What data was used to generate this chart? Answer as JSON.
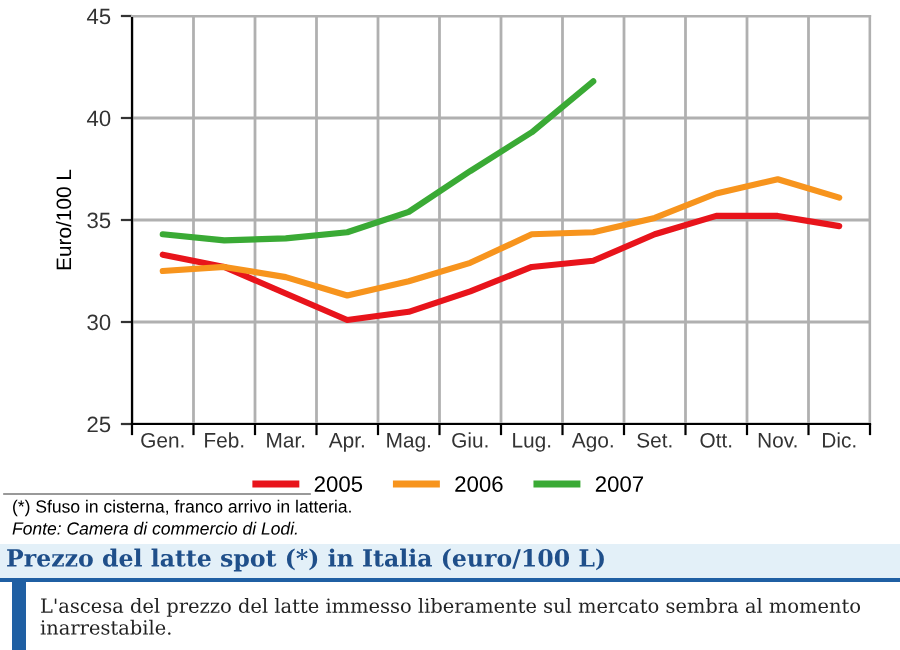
{
  "chart_data": {
    "type": "line",
    "title": "Prezzo del latte spot (*) in Italia (euro/100 L)",
    "subtitle": "L'ascesa del prezzo del latte immesso liberamente sul mercato sembra al momento inarrestabile.",
    "ylabel": "Euro/100 L",
    "annotations": [
      "(*) Sfuso in cisterna, franco arrivo in latteria.",
      "Fonte: Camera di commercio di Lodi."
    ],
    "categories": [
      "Gen.",
      "Feb.",
      "Mar.",
      "Apr.",
      "Mag.",
      "Giu.",
      "Lug.",
      "Ago.",
      "Set.",
      "Ott.",
      "Nov.",
      "Dic."
    ],
    "ylim": [
      25,
      45
    ],
    "yticks": [
      25,
      30,
      35,
      40,
      45
    ],
    "grid": true,
    "legend": "bottom",
    "line_style": "solid",
    "series": [
      {
        "name": "2005",
        "color": "#e8141b",
        "values": [
          33.3,
          32.7,
          31.4,
          30.1,
          30.5,
          31.5,
          32.7,
          33.0,
          34.3,
          35.2,
          35.2,
          34.7
        ]
      },
      {
        "name": "2006",
        "color": "#f7941d",
        "values": [
          32.5,
          32.7,
          32.2,
          31.3,
          32.0,
          32.9,
          34.3,
          34.4,
          35.1,
          36.3,
          37.0,
          36.1
        ]
      },
      {
        "name": "2007",
        "color": "#3aaa35",
        "values": [
          34.3,
          34.0,
          34.1,
          34.4,
          35.4,
          37.4,
          39.3,
          41.8,
          null,
          null,
          null,
          null
        ]
      }
    ]
  }
}
